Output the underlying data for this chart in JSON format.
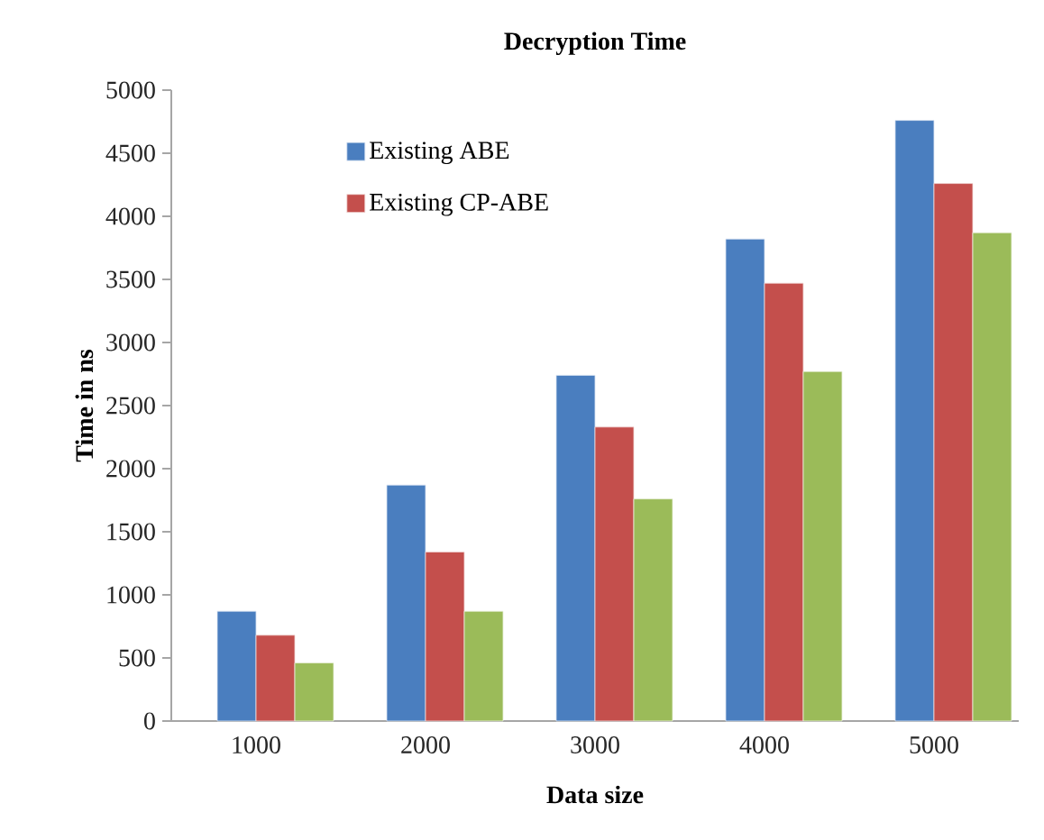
{
  "chart_data": {
    "type": "bar",
    "title": "Decryption Time",
    "xlabel": "Data size",
    "ylabel": "Time in ns",
    "categories": [
      "1000",
      "2000",
      "3000",
      "4000",
      "5000"
    ],
    "series": [
      {
        "name": "Existing ABE",
        "color": "#4a7ebf",
        "values": [
          870,
          1870,
          2740,
          3820,
          4760
        ]
      },
      {
        "name": "Existing CP-ABE",
        "color": "#c44f4c",
        "values": [
          680,
          1340,
          2330,
          3470,
          4260
        ]
      },
      {
        "color": "#9bbb59",
        "values": [
          460,
          870,
          1760,
          2770,
          3870
        ]
      }
    ],
    "ylim": [
      0,
      5000
    ],
    "yticks": [
      0,
      500,
      1000,
      1500,
      2000,
      2500,
      3000,
      3500,
      4000,
      4500,
      5000
    ],
    "legend": "top left"
  }
}
